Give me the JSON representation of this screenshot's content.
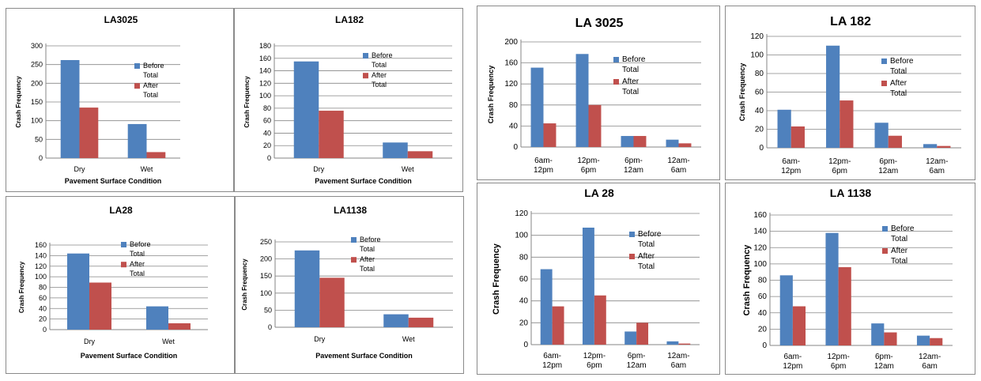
{
  "colors": {
    "before": "#4f81bd",
    "after": "#c0504d",
    "grid": "#868686"
  },
  "chart_data": [
    {
      "type": "bar",
      "title": "LA3025",
      "xlabel": "Pavement Surface Condition",
      "ylabel": "Crash Frequency",
      "categories": [
        "Dry",
        "Wet"
      ],
      "ylim": [
        0,
        300
      ],
      "yticks": [
        0,
        50,
        100,
        150,
        200,
        250,
        300
      ],
      "series": [
        {
          "name": "Before Total",
          "values": [
            262,
            91
          ]
        },
        {
          "name": "After Total",
          "values": [
            135,
            16
          ]
        }
      ],
      "legend": "right",
      "grid": true
    },
    {
      "type": "bar",
      "title": "LA182",
      "xlabel": "Pavement Surface Condition",
      "ylabel": "Crash Frequency",
      "categories": [
        "Dry",
        "Wet"
      ],
      "ylim": [
        0,
        180
      ],
      "yticks": [
        0,
        20,
        40,
        60,
        80,
        100,
        120,
        140,
        160,
        180
      ],
      "series": [
        {
          "name": "Before Total",
          "values": [
            155,
            25
          ]
        },
        {
          "name": "After Total",
          "values": [
            76,
            11
          ]
        }
      ],
      "legend": "right",
      "grid": true
    },
    {
      "type": "bar",
      "title": "LA28",
      "xlabel": "Pavement Surface Condition",
      "ylabel": "Crash Frequency",
      "categories": [
        "Dry",
        "Wet"
      ],
      "ylim": [
        0,
        160
      ],
      "yticks": [
        0,
        20,
        40,
        60,
        80,
        100,
        120,
        140,
        160
      ],
      "series": [
        {
          "name": "Before Total",
          "values": [
            144,
            44
          ]
        },
        {
          "name": "After Total",
          "values": [
            89,
            12
          ]
        }
      ],
      "legend": "right",
      "grid": true
    },
    {
      "type": "bar",
      "title": "LA1138",
      "xlabel": "Pavement Surface Condition",
      "ylabel": "Crash Frequency",
      "categories": [
        "Dry",
        "Wet"
      ],
      "ylim": [
        0,
        250
      ],
      "yticks": [
        0,
        50,
        100,
        150,
        200,
        250
      ],
      "series": [
        {
          "name": "Before Total",
          "values": [
            225,
            38
          ]
        },
        {
          "name": "After Total",
          "values": [
            145,
            28
          ]
        }
      ],
      "legend": "right",
      "grid": true
    },
    {
      "type": "bar",
      "title": "LA 3025",
      "xlabel": "",
      "ylabel": "Crash Frequency",
      "categories": [
        "6am-12pm",
        "12pm-6pm",
        "6pm-12am",
        "12am-6am"
      ],
      "ylim": [
        0,
        200
      ],
      "yticks": [
        0,
        40,
        80,
        120,
        160,
        200
      ],
      "series": [
        {
          "name": "Before Total",
          "values": [
            151,
            177,
            21,
            14
          ]
        },
        {
          "name": "After Total",
          "values": [
            45,
            80,
            21,
            7
          ]
        }
      ],
      "legend": "right",
      "grid": true
    },
    {
      "type": "bar",
      "title": "LA 182",
      "xlabel": "",
      "ylabel": "Crash Frequency",
      "categories": [
        "6am-12pm",
        "12pm-6pm",
        "6pm-12am",
        "12am-6am"
      ],
      "ylim": [
        0,
        120
      ],
      "yticks": [
        0,
        20,
        40,
        60,
        80,
        100,
        120
      ],
      "series": [
        {
          "name": "Before Total",
          "values": [
            41,
            110,
            27,
            4
          ]
        },
        {
          "name": "After Total",
          "values": [
            23,
            51,
            13,
            2
          ]
        }
      ],
      "legend": "right",
      "grid": true
    },
    {
      "type": "bar",
      "title": "LA 28",
      "xlabel": "",
      "ylabel": "Crash Frequency",
      "categories": [
        "6am-12pm",
        "12pm-6pm",
        "6pm-12am",
        "12am-6am"
      ],
      "ylim": [
        0,
        120
      ],
      "yticks": [
        0,
        20,
        40,
        60,
        80,
        100,
        120
      ],
      "series": [
        {
          "name": "Before Total",
          "values": [
            69,
            107,
            12,
            3
          ]
        },
        {
          "name": "After Total",
          "values": [
            35,
            45,
            20,
            1
          ]
        }
      ],
      "legend": "right",
      "grid": true
    },
    {
      "type": "bar",
      "title": "LA 1138",
      "xlabel": "",
      "ylabel": "Crash Frequency",
      "categories": [
        "6am-12pm",
        "12pm-6pm",
        "6pm-12am",
        "12am-6am"
      ],
      "ylim": [
        0,
        160
      ],
      "yticks": [
        0,
        20,
        40,
        60,
        80,
        100,
        120,
        140,
        160
      ],
      "series": [
        {
          "name": "Before Total",
          "values": [
            86,
            138,
            27,
            12
          ]
        },
        {
          "name": "After Total",
          "values": [
            48,
            96,
            16,
            9
          ]
        }
      ],
      "legend": "right",
      "grid": true
    }
  ]
}
